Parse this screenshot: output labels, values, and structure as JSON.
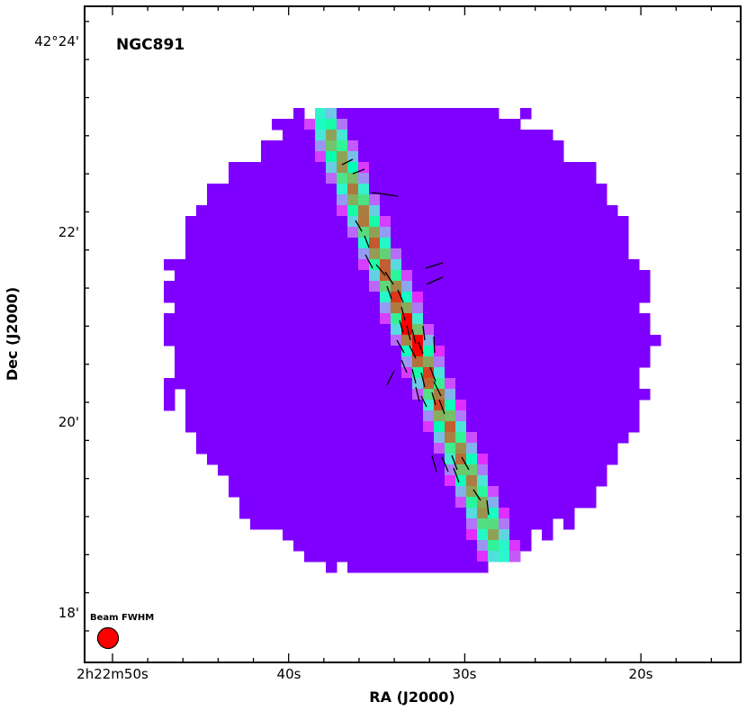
{
  "chart_data": {
    "type": "heatmap",
    "title": "NGC891",
    "xlabel": "RA (J2000)",
    "ylabel": "Dec (J2000)",
    "x_axis": {
      "ticks": [
        {
          "label": "2h22m50s",
          "value_s": 50
        },
        {
          "label": "40s",
          "value_s": 40
        },
        {
          "label": "30s",
          "value_s": 30
        },
        {
          "label": "20s",
          "value_s": 20
        }
      ],
      "direction": "decreasing-right"
    },
    "y_axis": {
      "ticks": [
        {
          "label": "42°24'",
          "value_arcmin": 24
        },
        {
          "label": "22'",
          "value_arcmin": 22
        },
        {
          "label": "20'",
          "value_arcmin": 20
        },
        {
          "label": "18'",
          "value_arcmin": 18
        }
      ]
    },
    "colormap": "rainbow",
    "colors": {
      "background": "#7f00ff",
      "low": "#7f00ff",
      "mid": "#2bd9e0",
      "high_green": "#9cf4a6",
      "peak": "#ff2000"
    },
    "beam": {
      "label": "Beam FWHM",
      "color": "#ff0000"
    },
    "disk": {
      "description_vectors": "polarization segments along galactic disk",
      "position_angle_deg": 22,
      "peak_ra_s": 33.0,
      "peak_dec_arcmin": 20.9
    },
    "grid": false,
    "legend": "none"
  }
}
